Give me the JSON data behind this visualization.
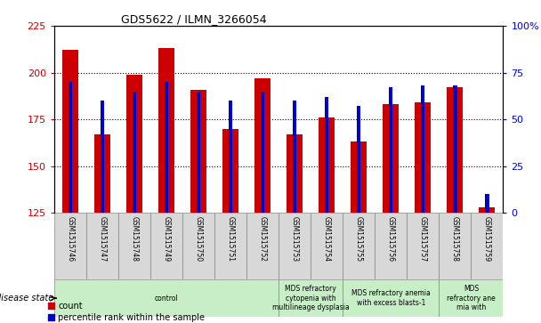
{
  "title": "GDS5622 / ILMN_3266054",
  "samples": [
    "GSM1515746",
    "GSM1515747",
    "GSM1515748",
    "GSM1515749",
    "GSM1515750",
    "GSM1515751",
    "GSM1515752",
    "GSM1515753",
    "GSM1515754",
    "GSM1515755",
    "GSM1515756",
    "GSM1515757",
    "GSM1515758",
    "GSM1515759"
  ],
  "counts": [
    212,
    167,
    199,
    213,
    191,
    170,
    197,
    167,
    176,
    163,
    183,
    184,
    192,
    128
  ],
  "percentile_ranks": [
    70,
    60,
    65,
    70,
    65,
    60,
    65,
    60,
    62,
    57,
    67,
    68,
    68,
    10
  ],
  "y_min": 125,
  "y_max": 225,
  "y_ticks_left": [
    125,
    150,
    175,
    200,
    225
  ],
  "y_right_labels": [
    "0",
    "25",
    "50",
    "75",
    "100%"
  ],
  "y_right_pct": [
    0,
    25,
    50,
    75,
    100
  ],
  "color_count": "#cc0000",
  "color_percentile": "#0000cc",
  "bar_width": 0.5,
  "pct_bar_width": 0.12,
  "disease_groups": [
    {
      "label": "control",
      "start": 0,
      "end": 7
    },
    {
      "label": "MDS refractory\ncytopenia with\nmultilineage dysplasia",
      "start": 7,
      "end": 9
    },
    {
      "label": "MDS refractory anemia\nwith excess blasts-1",
      "start": 9,
      "end": 12
    },
    {
      "label": "MDS\nrefractory ane\nmia with",
      "start": 12,
      "end": 14
    }
  ]
}
